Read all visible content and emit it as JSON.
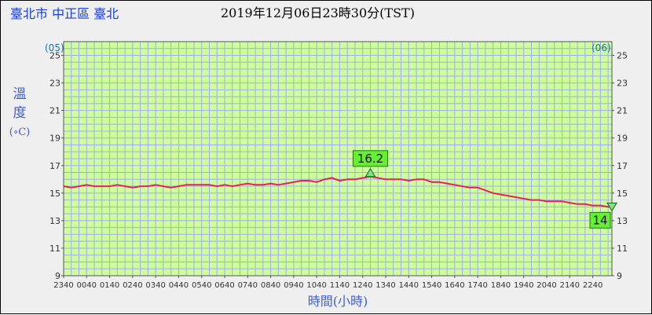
{
  "header": {
    "location": "臺北市 中正區 臺北",
    "datetime": "2019年12月06日23時30分(TST)"
  },
  "chart_data": {
    "type": "line",
    "ylabel": "溫度",
    "yunit": "(∘C)",
    "xlabel": "時間(小時)",
    "day_left": "(05)",
    "day_right": "(06)",
    "ylim": [
      9,
      26
    ],
    "yticks": [
      9,
      11,
      13,
      15,
      17,
      19,
      21,
      23,
      25
    ],
    "xlim": [
      "2340",
      "2330"
    ],
    "xtick_labels": [
      "2340",
      "0040",
      "0140",
      "0240",
      "0340",
      "0440",
      "0540",
      "0640",
      "0740",
      "0840",
      "0940",
      "1040",
      "1140",
      "1240",
      "1340",
      "1440",
      "1540",
      "1640",
      "1740",
      "1840",
      "1940",
      "2040",
      "2140",
      "2240"
    ],
    "grid": true,
    "colors": {
      "plot_bg": "#ccff99",
      "grid": "#a8a8f0",
      "line": "#e8205a",
      "header_location": "#1a3fd6",
      "header_datetime": "#000000",
      "axis_title": "#3f5fd8",
      "day_marker": "#1a6fb5",
      "annotation_bg": "#66ee33",
      "triangle": "#88dd88"
    },
    "series": [
      {
        "x": [
          "2340",
          "0000",
          "0020",
          "0040",
          "0100",
          "0120",
          "0140",
          "0200",
          "0220",
          "0240",
          "0300",
          "0320",
          "0340",
          "0400",
          "0420",
          "0440",
          "0500",
          "0520",
          "0540",
          "0600",
          "0620",
          "0640",
          "0700",
          "0720",
          "0740",
          "0800",
          "0820",
          "0840",
          "0900",
          "0920",
          "0940",
          "1000",
          "1020",
          "1040",
          "1100",
          "1120",
          "1140",
          "1200",
          "1220",
          "1240",
          "1300",
          "1320",
          "1340",
          "1400",
          "1420",
          "1440",
          "1500",
          "1520",
          "1540",
          "1600",
          "1620",
          "1640",
          "1700",
          "1720",
          "1740",
          "1800",
          "1820",
          "1840",
          "1900",
          "1920",
          "1940",
          "2000",
          "2020",
          "2040",
          "2100",
          "2120",
          "2140",
          "2200",
          "2220",
          "2240",
          "2300",
          "2320",
          "2330"
        ],
        "values": [
          15.5,
          15.4,
          15.5,
          15.6,
          15.5,
          15.5,
          15.5,
          15.6,
          15.5,
          15.4,
          15.5,
          15.5,
          15.6,
          15.5,
          15.4,
          15.5,
          15.6,
          15.6,
          15.6,
          15.6,
          15.5,
          15.6,
          15.5,
          15.6,
          15.7,
          15.6,
          15.6,
          15.7,
          15.6,
          15.7,
          15.8,
          15.9,
          15.9,
          15.8,
          16.0,
          16.1,
          15.9,
          16.0,
          16.0,
          16.1,
          16.2,
          16.1,
          16.0,
          16.0,
          16.0,
          15.9,
          16.0,
          16.0,
          15.8,
          15.8,
          15.7,
          15.6,
          15.5,
          15.4,
          15.4,
          15.2,
          15.0,
          14.9,
          14.8,
          14.7,
          14.6,
          14.5,
          14.5,
          14.4,
          14.4,
          14.4,
          14.3,
          14.2,
          14.2,
          14.1,
          14.1,
          14.0,
          14.0
        ]
      }
    ],
    "annotations": [
      {
        "label": "16.2",
        "kind": "max",
        "x": "1300",
        "y": 16.2
      },
      {
        "label": "14",
        "kind": "min",
        "x": "2330",
        "y": 14.0
      }
    ]
  }
}
